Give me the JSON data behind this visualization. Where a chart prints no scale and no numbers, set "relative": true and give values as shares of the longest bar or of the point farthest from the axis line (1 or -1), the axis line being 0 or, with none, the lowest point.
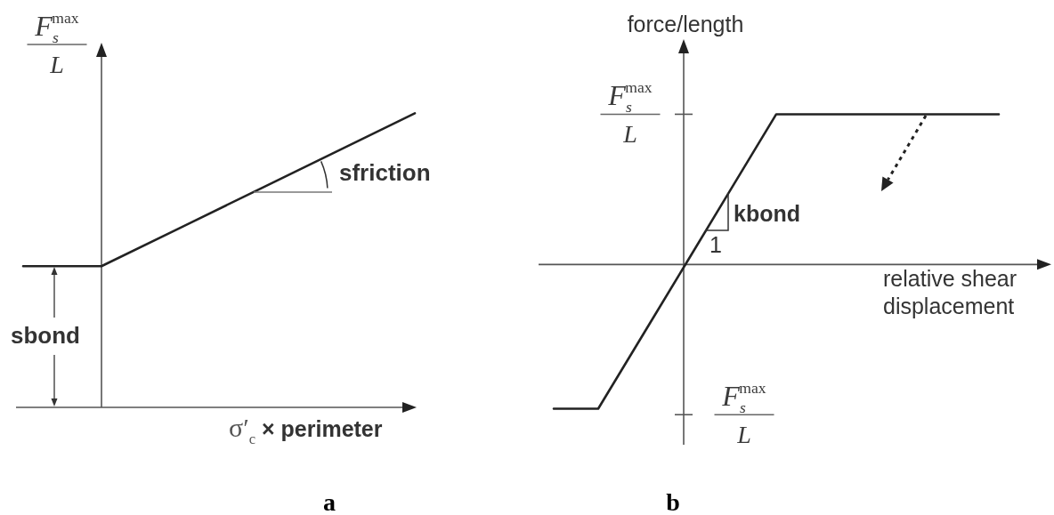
{
  "chart_data": [
    {
      "type": "line",
      "title": "a",
      "xlabel": "σ′$_{c}$ × perimeter",
      "ylabel": "F$_{s}$$^{max}$\nL",
      "relative": true,
      "categories": [
        null,
        null,
        null,
        null,
        null,
        null
      ],
      "series": [
        {
          "color": "#222222",
          "values": [
            0.48,
            0.48,
            0.61,
            0.74,
            0.87,
            1
          ]
        }
      ],
      "annotations": [
        "sfriction",
        "sbond"
      ]
    },
    {
      "type": "line",
      "title": "b",
      "xlabel": "relative shear displacement",
      "ylabel": "force/length",
      "relative": true,
      "categories": [
        null,
        null,
        null,
        null,
        null,
        null,
        null,
        null,
        null,
        null,
        null
      ],
      "series": [
        {
          "color": "#222222",
          "values": [
            -0.96,
            -0.96,
            -0.47,
            0.02,
            0.51,
            1,
            1,
            1,
            1,
            1,
            1
          ]
        }
      ],
      "annotations": [
        "kbond",
        "1",
        "F$_{s}$$^{max}$\nL",
        "F$_{s}$$^{max}$\nL"
      ]
    }
  ]
}
